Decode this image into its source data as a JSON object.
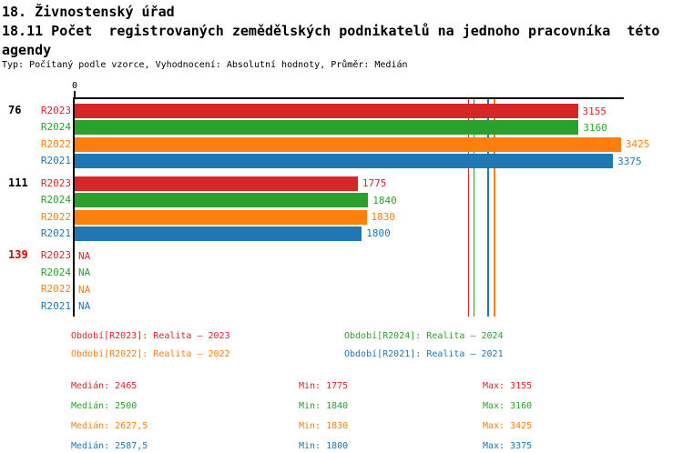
{
  "header": {
    "title": "18. Živnostenský úřad",
    "subtitle": "18.11 Počet  registrovaných zemědělských podnikatelů na jednoho pracovníka  této\nagendy",
    "meta": "Typ: Počítaný podle vzorce, Vyhodnocení: Absolutní hodnoty, Průměr: Medián"
  },
  "chart_data": {
    "type": "bar",
    "orientation": "horizontal",
    "title": "18.11 Počet registrovaných zemědělských podnikatelů na jednoho pracovníka této agendy",
    "x_axis": {
      "origin_label": "0",
      "max": 3443,
      "ticks": [
        "0"
      ]
    },
    "na_label": "NA",
    "grid": false,
    "legend_position": "bottom",
    "groups": [
      {
        "label": "76",
        "label_color": "#000000",
        "values": [
          3155,
          3160,
          3425,
          3375
        ]
      },
      {
        "label": "111",
        "label_color": "#000000",
        "values": [
          1775,
          1840,
          1830,
          1800
        ]
      },
      {
        "label": "139",
        "label_color": "#dd0000",
        "values": [
          null,
          null,
          null,
          null
        ]
      }
    ],
    "series": [
      {
        "name": "R2023",
        "color": "#d62728",
        "legend": "Období[R2023]: Realita – 2023",
        "median": 2465,
        "median_label": "Medián: 2465",
        "min_label": "Min: 1775",
        "max_label": "Max: 3155"
      },
      {
        "name": "R2024",
        "color": "#2ca02c",
        "legend": "Období[R2024]: Realita – 2024",
        "median": 2500,
        "median_label": "Medián: 2500",
        "min_label": "Min: 1840",
        "max_label": "Max: 3160"
      },
      {
        "name": "R2022",
        "color": "#ff7f0e",
        "legend": "Období[R2022]: Realita – 2022",
        "median": 2627.5,
        "median_label": "Medián: 2627,5",
        "min_label": "Min: 1830",
        "max_label": "Max: 3425"
      },
      {
        "name": "R2021",
        "color": "#1f77b4",
        "legend": "Období[R2021]: Realita – 2021",
        "median": 2587.5,
        "median_label": "Medián: 2587,5",
        "min_label": "Min: 1800",
        "max_label": "Max: 3375"
      }
    ]
  }
}
